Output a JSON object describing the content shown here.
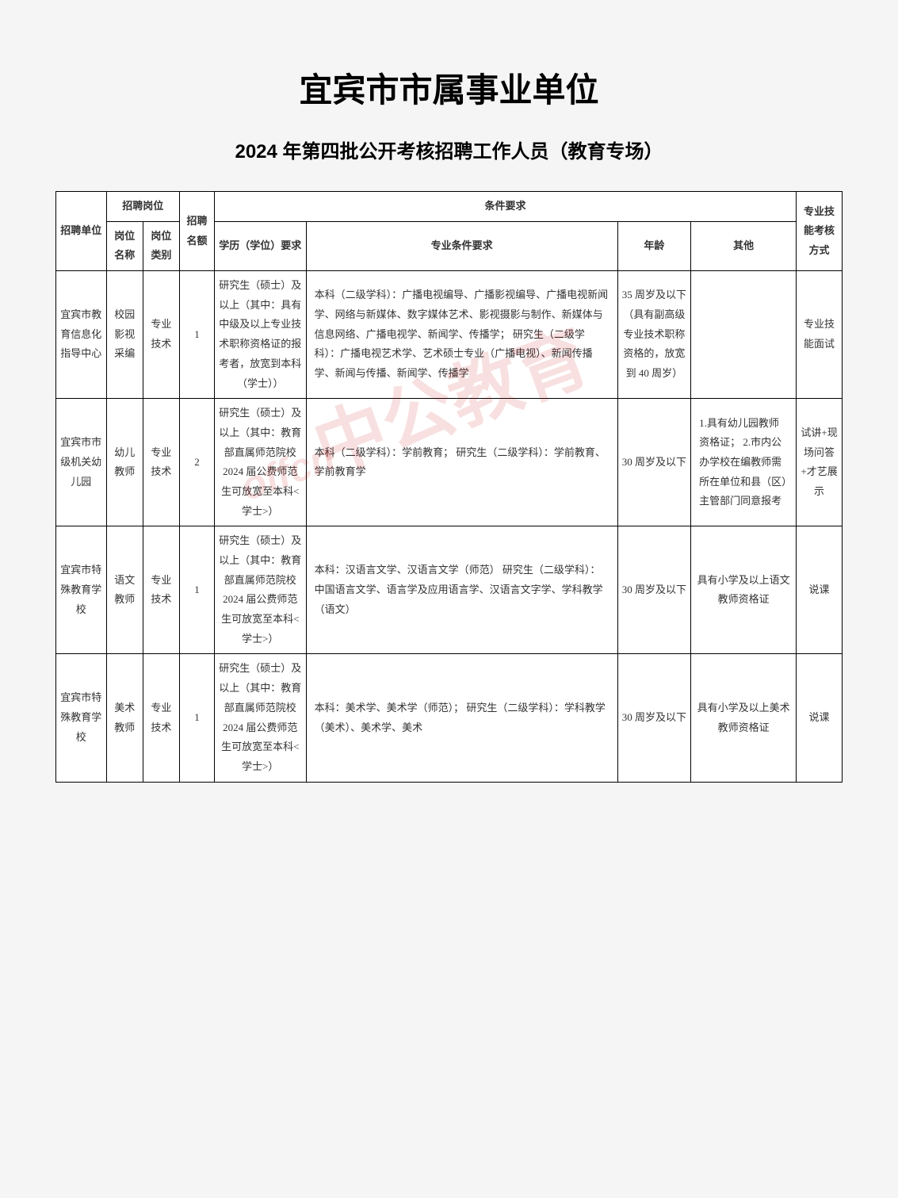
{
  "main_title": "宜宾市市属事业单位",
  "sub_title": "2024 年第四批公开考核招聘工作人员（教育专场）",
  "watermark_text": "中公教育",
  "watermark_sub": "offcn",
  "headers": {
    "unit": "招聘单位",
    "post_group": "招聘岗位",
    "post_name": "岗位名称",
    "post_type": "岗位类别",
    "quota": "招聘名额",
    "requirements_group": "条件要求",
    "education": "学历（学位）要求",
    "major": "专业条件要求",
    "age": "年龄",
    "other": "其他",
    "exam": "专业技能考核方式"
  },
  "rows": [
    {
      "unit": "宜宾市教育信息化指导中心",
      "post_name": "校园影视采编",
      "post_type": "专业技术",
      "quota": "1",
      "education": "研究生（硕士）及以上（其中：具有中级及以上专业技术职称资格证的报考者，放宽到本科（学士））",
      "major": "本科（二级学科）：广播电视编导、广播影视编导、广播电视新闻学、网络与新媒体、数字媒体艺术、影视摄影与制作、新媒体与信息网络、广播电视学、新闻学、传播学；\n研究生（二级学科）：广播电视艺术学、艺术硕士专业（广播电视）、新闻传播学、新闻与传播、新闻学、传播学",
      "age": "35 周岁及以下（具有副高级专业技术职称资格的，放宽到 40 周岁）",
      "other": "",
      "exam": "专业技能面试"
    },
    {
      "unit": "宜宾市市级机关幼儿园",
      "post_name": "幼儿教师",
      "post_type": "专业技术",
      "quota": "2",
      "education": "研究生（硕士）及以上（其中：教育部直属师范院校 2024 届公费师范生可放宽至本科<学士>）",
      "major": "本科（二级学科）：学前教育；\n研究生（二级学科）：学前教育、学前教育学",
      "age": "30 周岁及以下",
      "other": "1.具有幼儿园教师资格证；\n2.市内公办学校在编教师需所在单位和县（区）主管部门同意报考",
      "exam": "试讲+现场问答+才艺展示"
    },
    {
      "unit": "宜宾市特殊教育学校",
      "post_name": "语文教师",
      "post_type": "专业技术",
      "quota": "1",
      "education": "研究生（硕士）及以上（其中：教育部直属师范院校 2024 届公费师范生可放宽至本科<学士>）",
      "major": "本科：汉语言文学、汉语言文学（师范）\n研究生（二级学科）：中国语言文学、语言学及应用语言学、汉语言文字学、学科教学（语文）",
      "age": "30 周岁及以下",
      "other": "具有小学及以上语文教师资格证",
      "exam": "说课"
    },
    {
      "unit": "宜宾市特殊教育学校",
      "post_name": "美术教师",
      "post_type": "专业技术",
      "quota": "1",
      "education": "研究生（硕士）及以上（其中：教育部直属师范院校 2024 届公费师范生可放宽至本科<学士>）",
      "major": "本科：美术学、美术学（师范）；\n研究生（二级学科）：学科教学（美术）、美术学、美术",
      "age": "30 周岁及以下",
      "other": "具有小学及以上美术教师资格证",
      "exam": "说课"
    }
  ]
}
